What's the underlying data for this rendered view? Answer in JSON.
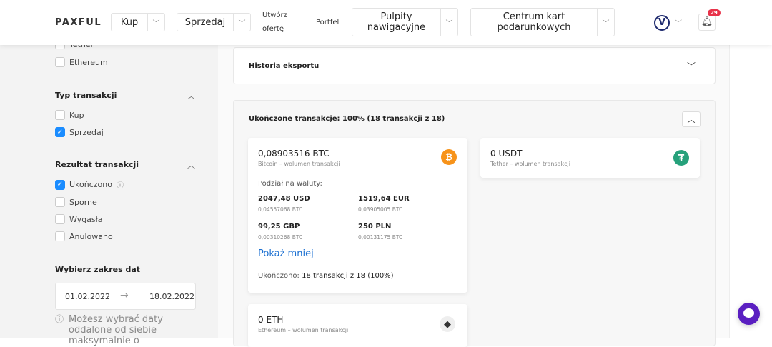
{
  "header": {
    "logo": "PAXFUL",
    "buy": "Kup",
    "sell": "Sprzedaj",
    "create_offer": [
      "Utwórz",
      "ofertę"
    ],
    "wallet": "Portfel",
    "dashboards": [
      "Pulpity",
      "nawigacyjne"
    ],
    "giftcards": [
      "Centrum kart",
      "podarunkowych"
    ],
    "notifications_count": "29"
  },
  "sidebar": {
    "crypto": [
      "Tether",
      "Ethereum"
    ],
    "type_title": "Typ transakcji",
    "type_items": [
      {
        "label": "Kup",
        "checked": false
      },
      {
        "label": "Sprzedaj",
        "checked": true
      }
    ],
    "result_title": "Rezultat transakcji",
    "result_items": [
      {
        "label": "Ukończono",
        "checked": true
      },
      {
        "label": "Sporne",
        "checked": false
      },
      {
        "label": "Wygasła",
        "checked": false
      },
      {
        "label": "Anulowano",
        "checked": false
      }
    ],
    "date_title": "Wybierz zakres dat",
    "date_from": "01.02.2022",
    "date_to": "18.02.2022",
    "date_note": "Możesz wybrać daty oddalone od siebie maksymalnie o"
  },
  "main": {
    "export_title": "Historia eksportu",
    "completed_title": "Ukończone transakcje: 100% (18 transakcji z 18)",
    "btc": {
      "amount": "0,08903516 BTC",
      "sub": "Bitcoin – wolumen transakcji",
      "breakdown_title": "Podział na waluty:",
      "currencies": [
        {
          "fiat": "2047,48 USD",
          "btc": "0,04557068 BTC"
        },
        {
          "fiat": "1519,64 EUR",
          "btc": "0,03905005 BTC"
        },
        {
          "fiat": "99,25 GBP",
          "btc": "0,00310268 BTC"
        },
        {
          "fiat": "250 PLN",
          "btc": "0,00131175 BTC"
        }
      ],
      "show_less": "Pokaż mniej",
      "completed_label": "Ukończono:",
      "completed_value": "18 transakcji z 18 (100%)"
    },
    "usdt": {
      "amount": "0 USDT",
      "sub": "Tether – wolumen transakcji"
    },
    "eth": {
      "amount": "0 ETH",
      "sub": "Ethereum – wolumen transakcji"
    }
  },
  "colors": {
    "accent": "#1a8cff",
    "btc": "#f7931a",
    "usdt": "#26a17b",
    "chat": "#5a1fc1",
    "badge": "#e8334a"
  }
}
